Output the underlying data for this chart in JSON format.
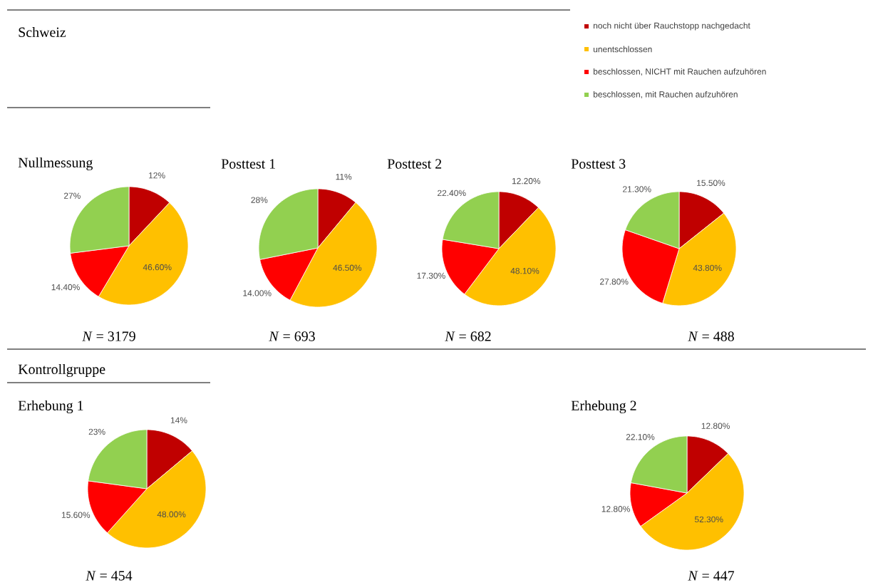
{
  "chart_data": [
    {
      "type": "pie",
      "title": "Nullmessung",
      "categories": [
        "noch nicht über Rauchstopp nachgedacht",
        "unentschlossen",
        "beschlossen, NICHT mit Rauchen aufzuhören",
        "beschlossen, mit Rauchen aufzuhören"
      ],
      "values": [
        12,
        46.6,
        14.4,
        27
      ],
      "value_labels": [
        "12%",
        "46.60%",
        "14.40%",
        "27%"
      ],
      "colors": [
        "#c00000",
        "#ffc000",
        "#ff0000",
        "#92d050"
      ],
      "legend": "top right",
      "annotations": [
        "Schweiz",
        "*N* = 3179"
      ]
    },
    {
      "type": "pie",
      "title": "Posttest 1",
      "categories": [
        null,
        null,
        null,
        null
      ],
      "values": [
        11,
        46.5,
        14.0,
        28
      ],
      "value_labels": [
        "11%",
        "46.50%",
        "14.00%",
        "28%"
      ],
      "colors": [
        "#c00000",
        "#ffc000",
        "#ff0000",
        "#92d050"
      ],
      "annotations": [
        "*N* = 693"
      ]
    },
    {
      "type": "pie",
      "title": "Posttest 2",
      "categories": [
        null,
        null,
        null,
        null
      ],
      "values": [
        12.2,
        48.1,
        17.3,
        22.4
      ],
      "value_labels": [
        "12.20%",
        "48.10%",
        "17.30%",
        "22.40%"
      ],
      "colors": [
        "#c00000",
        "#ffc000",
        "#ff0000",
        "#92d050"
      ],
      "annotations": [
        "*N* = 682"
      ]
    },
    {
      "type": "pie",
      "title": "Posttest 3",
      "categories": [
        null,
        null,
        null,
        null
      ],
      "values": [
        15.5,
        43.8,
        27.8,
        21.3
      ],
      "value_labels": [
        "15.50%",
        "43.80%",
        "27.80%",
        "21.30%"
      ],
      "colors": [
        "#c00000",
        "#ffc000",
        "#ff0000",
        "#92d050"
      ],
      "annotations": [
        "*N* = 488"
      ]
    },
    {
      "type": "pie",
      "title": "Erhebung 1",
      "categories": [
        null,
        null,
        null,
        null
      ],
      "values": [
        14,
        48.0,
        15.6,
        23
      ],
      "value_labels": [
        "14%",
        "48.00%",
        "15.60%",
        "23%"
      ],
      "colors": [
        "#c00000",
        "#ffc000",
        "#ff0000",
        "#92d050"
      ],
      "annotations": [
        "Kontrollgruppe",
        "*N* = 454"
      ]
    },
    {
      "type": "pie",
      "title": "Erhebung 2",
      "categories": [
        null,
        null,
        null,
        null
      ],
      "values": [
        12.8,
        52.3,
        12.8,
        22.1
      ],
      "value_labels": [
        "12.80%",
        "52.30%",
        "12.80%",
        "22.10%"
      ],
      "colors": [
        "#c00000",
        "#ffc000",
        "#ff0000",
        "#92d050"
      ],
      "annotations": [
        "*N* = 447"
      ]
    }
  ]
}
